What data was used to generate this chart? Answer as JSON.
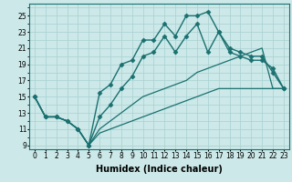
{
  "xlabel": "Humidex (Indice chaleur)",
  "ylabel": "",
  "xlim": [
    -0.5,
    23.5
  ],
  "ylim": [
    8.5,
    26.5
  ],
  "xticks": [
    0,
    1,
    2,
    3,
    4,
    5,
    6,
    7,
    8,
    9,
    10,
    11,
    12,
    13,
    14,
    15,
    16,
    17,
    18,
    19,
    20,
    21,
    22,
    23
  ],
  "yticks": [
    9,
    11,
    13,
    15,
    17,
    19,
    21,
    23,
    25
  ],
  "bg_color": "#cce8e8",
  "line_color": "#1a7070",
  "series": [
    [
      15,
      12.5,
      12.5,
      12,
      11,
      9,
      15.5,
      16.5,
      19,
      19.5,
      22,
      22,
      24,
      22.5,
      25,
      25,
      25.5,
      23,
      21,
      20.5,
      20,
      20,
      18,
      16
    ],
    [
      15,
      12.5,
      12.5,
      12,
      11,
      9,
      12.5,
      14,
      16,
      17.5,
      20,
      20.5,
      22.5,
      20.5,
      22.5,
      24,
      20.5,
      23,
      20.5,
      20,
      19.5,
      19.5,
      18.5,
      16
    ],
    [
      15,
      12.5,
      12.5,
      12,
      11,
      9,
      11,
      12,
      13,
      14,
      15,
      15.5,
      16,
      16.5,
      17,
      18,
      18.5,
      19,
      19.5,
      20,
      20.5,
      21,
      16,
      16
    ],
    [
      15,
      12.5,
      12.5,
      12,
      11,
      9,
      10.5,
      11,
      11.5,
      12,
      12.5,
      13,
      13.5,
      14,
      14.5,
      15,
      15.5,
      16,
      16,
      16,
      16,
      16,
      16,
      16
    ]
  ],
  "markers": [
    "D",
    "D",
    null,
    null
  ],
  "markersize": 2.5,
  "linewidths": [
    1.0,
    1.0,
    0.9,
    0.9
  ],
  "font_size_ticks": 5.5,
  "font_size_xlabel": 7,
  "grid_color": "#a8d0d0",
  "grid_lw": 0.5
}
